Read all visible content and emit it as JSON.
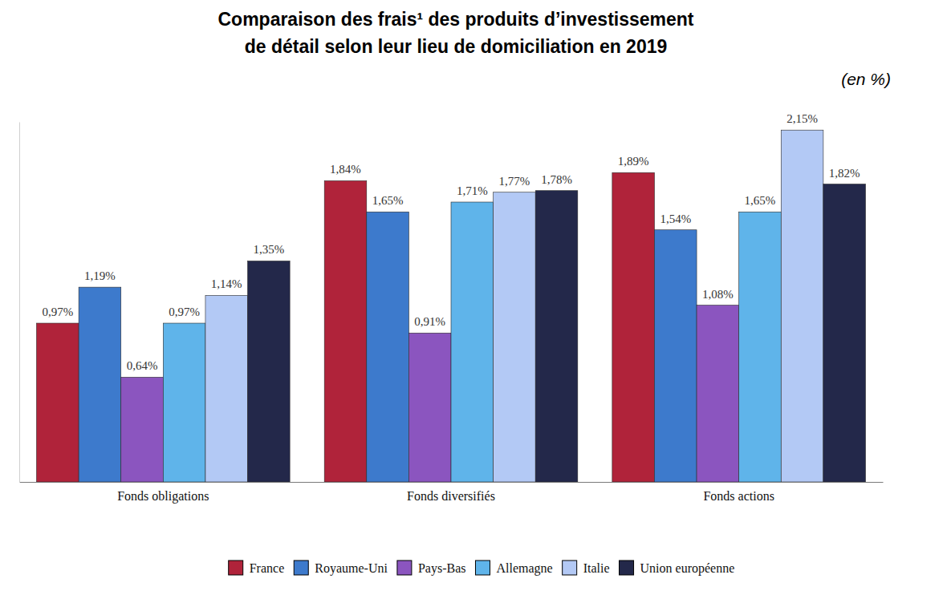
{
  "chart_data": {
    "type": "bar",
    "title": [
      "Comparaison des frais¹ des produits d’investissement",
      "de détail selon leur lieu de domiciliation en 2019"
    ],
    "subtitle": "(en %)",
    "categories": [
      "Fonds obligations",
      "Fonds diversifiés",
      "Fonds actions"
    ],
    "series": [
      {
        "name": "France",
        "color": "#b0233a",
        "values": [
          0.97,
          1.84,
          1.89
        ],
        "value_labels": [
          "0,97%",
          "1,84%",
          "1,89%"
        ]
      },
      {
        "name": "Royaume-Uni",
        "color": "#3d7acc",
        "values": [
          1.19,
          1.65,
          1.54
        ],
        "value_labels": [
          "1,19%",
          "1,65%",
          "1,54%"
        ]
      },
      {
        "name": "Pays-Bas",
        "color": "#8b55bf",
        "values": [
          0.64,
          0.91,
          1.08
        ],
        "value_labels": [
          "0,64%",
          "0,91%",
          "1,08%"
        ]
      },
      {
        "name": "Allemagne",
        "color": "#5fb4ea",
        "values": [
          0.97,
          1.71,
          1.65
        ],
        "value_labels": [
          "0,97%",
          "1,71%",
          "1,65%"
        ]
      },
      {
        "name": "Italie",
        "color": "#b3c9f5",
        "values": [
          1.14,
          1.77,
          2.15
        ],
        "value_labels": [
          "1,14%",
          "1,77%",
          "2,15%"
        ]
      },
      {
        "name": "Union européenne",
        "color": "#23284a",
        "values": [
          1.35,
          1.78,
          1.82
        ],
        "value_labels": [
          "1,35%",
          "1,78%",
          "1,82%"
        ]
      }
    ],
    "ylim": [
      0,
      2.2
    ],
    "yticks": [],
    "grid": false,
    "legend": "bottom",
    "data_labels": true,
    "tick_labels": "x"
  }
}
